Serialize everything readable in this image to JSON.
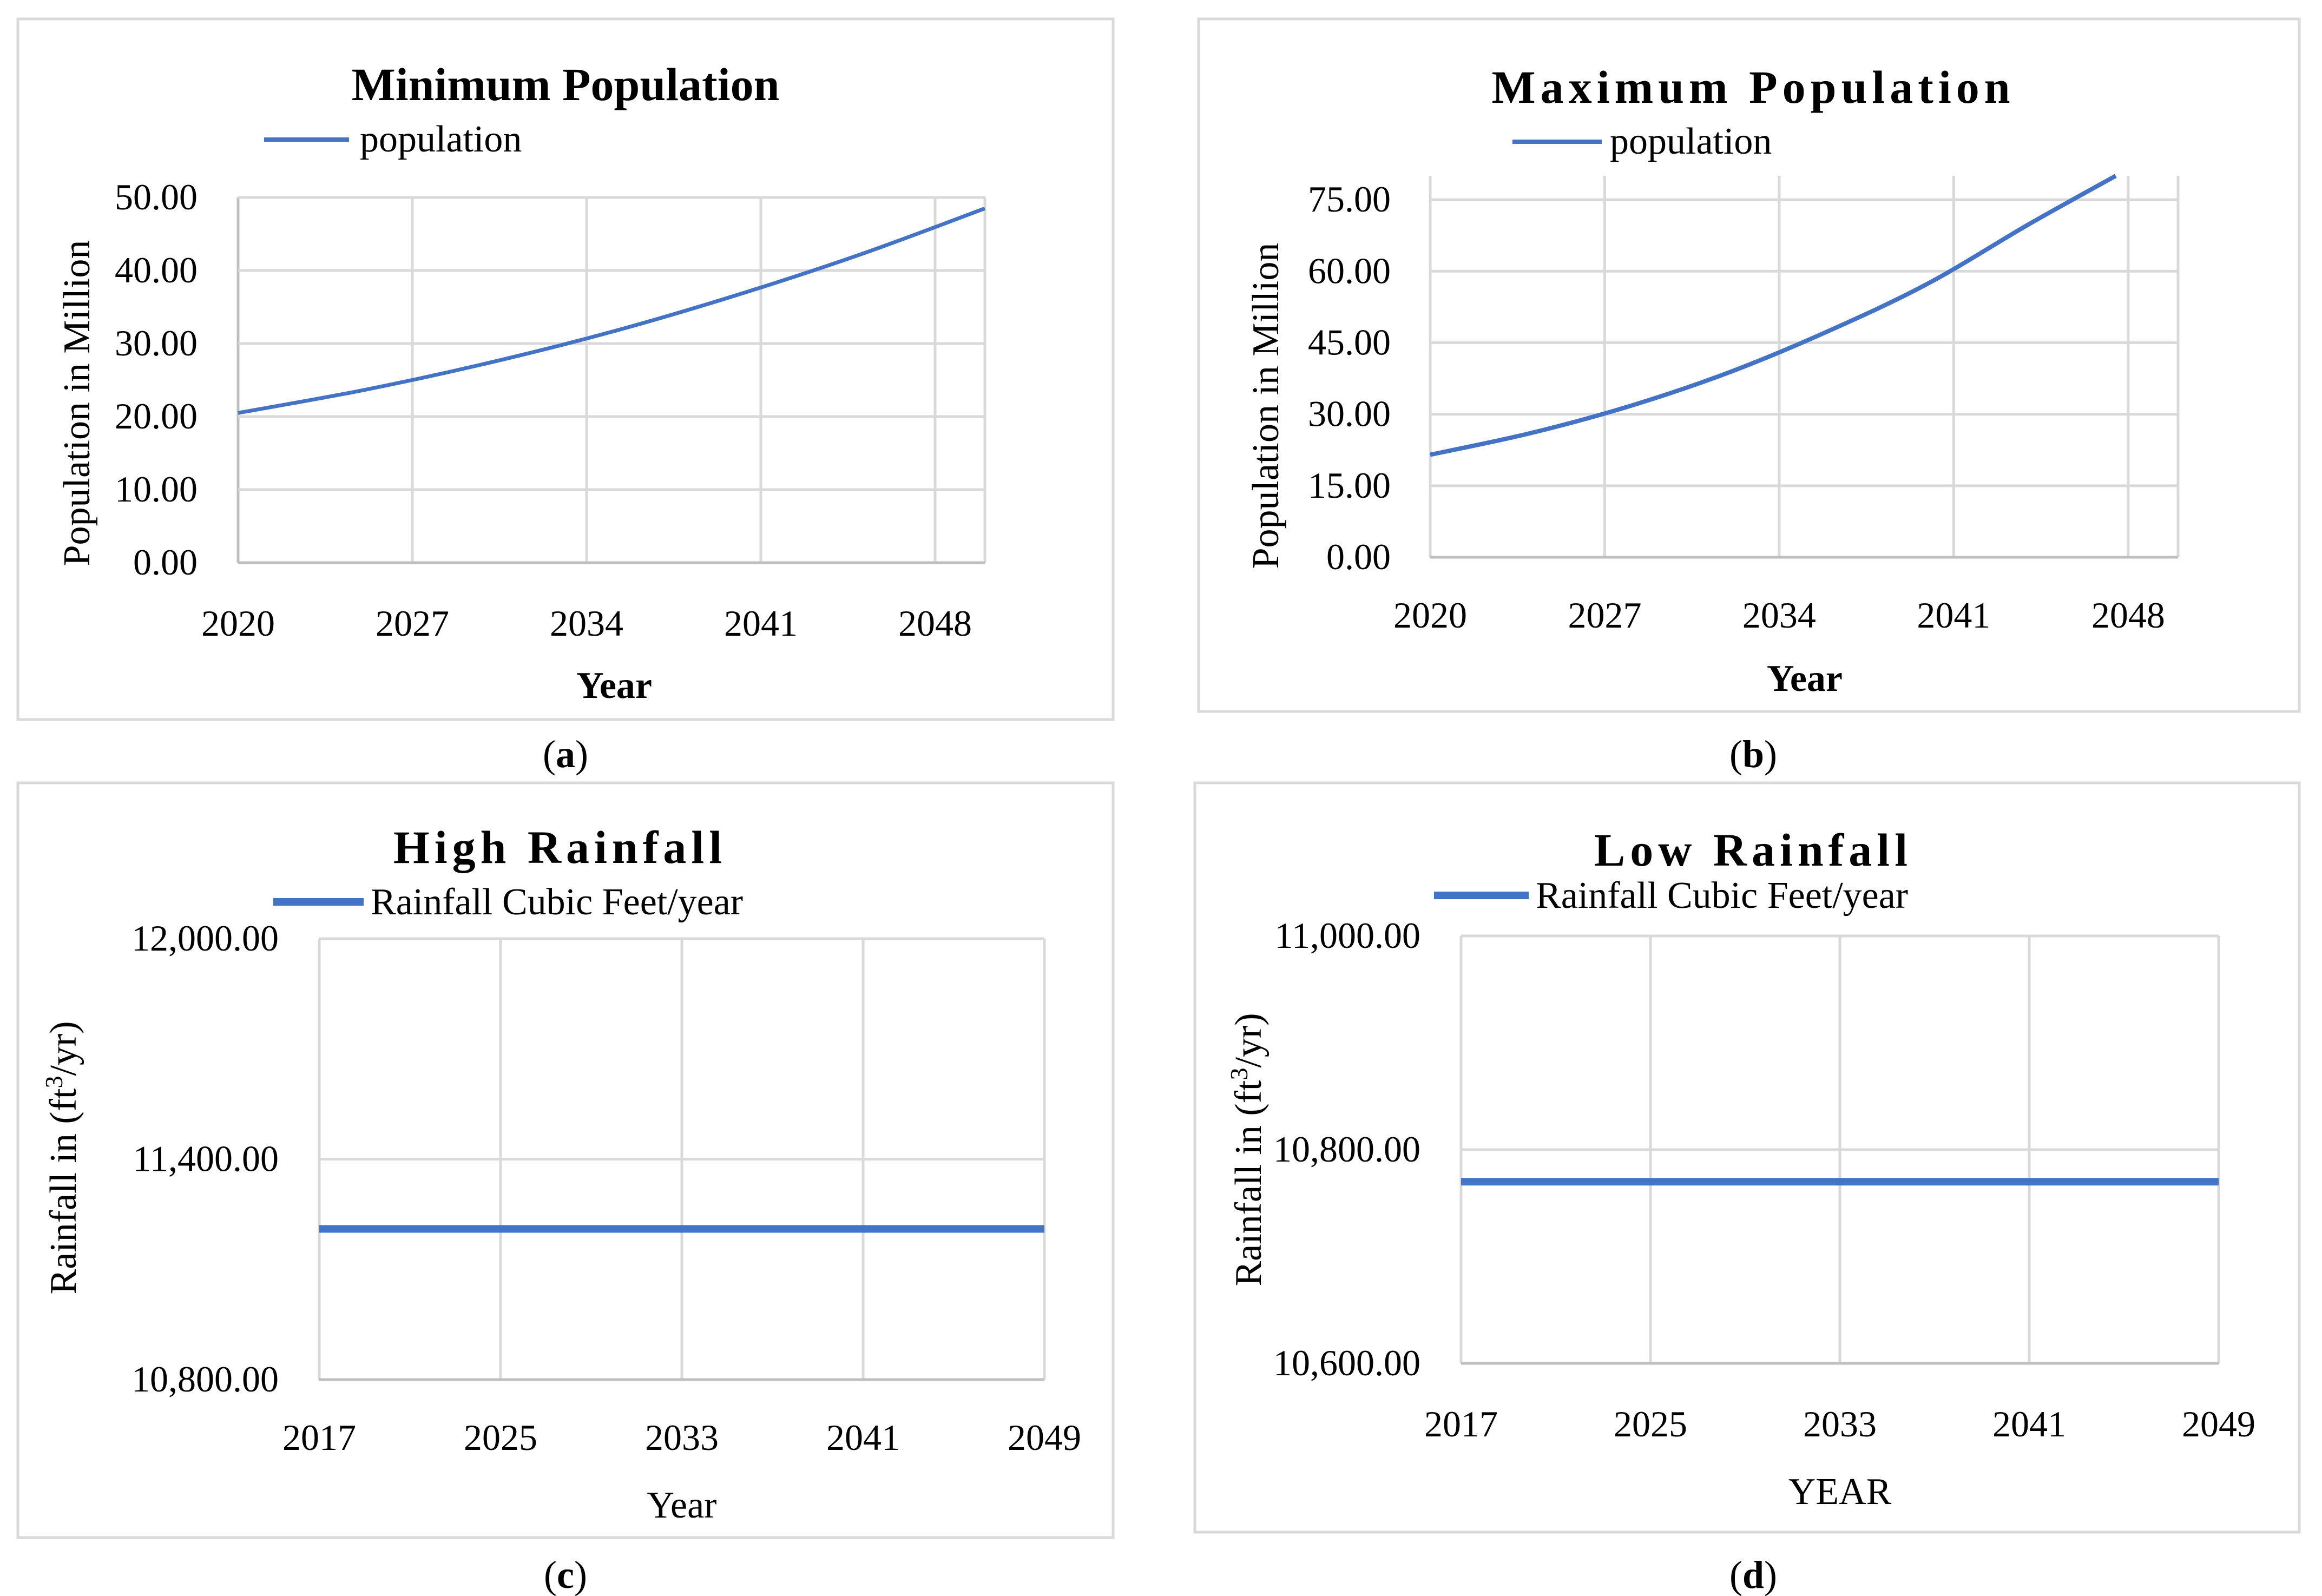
{
  "colors": {
    "series": "#4472c4",
    "grid": "#d9d9d9",
    "frame": "#d9d9d9"
  },
  "chart_data": [
    {
      "id": "a",
      "type": "line",
      "title": "Minimum Population",
      "legend": [
        "population"
      ],
      "xlabel": "Year",
      "ylabel": "Population in Million",
      "x_ticks": [
        "2020",
        "2027",
        "2034",
        "2041",
        "2048"
      ],
      "y_ticks": [
        "0.00",
        "10.00",
        "20.00",
        "30.00",
        "40.00",
        "50.00"
      ],
      "xlim": [
        2020,
        2050
      ],
      "ylim": [
        0,
        50
      ],
      "series": [
        {
          "name": "population",
          "x": [
            2020,
            2025,
            2030,
            2035,
            2040,
            2045,
            2050
          ],
          "y": [
            20.5,
            23.6,
            27.3,
            31.6,
            36.6,
            42.2,
            48.5
          ]
        }
      ],
      "panel": "a"
    },
    {
      "id": "b",
      "type": "line",
      "title": "Maximum Population",
      "legend": [
        "population"
      ],
      "xlabel": "Year",
      "ylabel": "Population in Million",
      "x_ticks": [
        "2020",
        "2027",
        "2034",
        "2041",
        "2048"
      ],
      "y_ticks": [
        "0.00",
        "15.00",
        "30.00",
        "45.00",
        "60.00",
        "75.00"
      ],
      "xlim": [
        2020,
        2050
      ],
      "ylim": [
        0,
        80
      ],
      "series": [
        {
          "name": "population",
          "x": [
            2020,
            2024,
            2028,
            2032,
            2036,
            2040,
            2044,
            2047.5
          ],
          "y": [
            21.5,
            26.0,
            31.7,
            38.8,
            47.5,
            57.5,
            69.8,
            80.0
          ]
        }
      ],
      "panel": "b"
    },
    {
      "id": "c",
      "type": "line",
      "title": "High Rainfall",
      "legend": [
        "Rainfall Cubic Feet/year"
      ],
      "xlabel": "Year",
      "ylabel": "Rainfall in (ft³/yr)",
      "x_ticks": [
        "2017",
        "2025",
        "2033",
        "2041",
        "2049"
      ],
      "y_ticks": [
        "10,800.00",
        "11,400.00",
        "12,000.00"
      ],
      "xlim": [
        2017,
        2049
      ],
      "ylim": [
        10800,
        12000
      ],
      "series": [
        {
          "name": "Rainfall Cubic Feet/year",
          "x": [
            2017,
            2049
          ],
          "y": [
            11210,
            11210
          ]
        }
      ],
      "panel": "c"
    },
    {
      "id": "d",
      "type": "line",
      "title": "Low Rainfall",
      "legend": [
        "Rainfall Cubic Feet/year"
      ],
      "xlabel": "YEAR",
      "ylabel": "Rainfall in (ft³/yr)",
      "x_ticks": [
        "2017",
        "2025",
        "2033",
        "2041",
        "2049"
      ],
      "y_ticks": [
        "10,600.00",
        "10,800.00",
        "11,000.00"
      ],
      "xlim": [
        2017,
        2049
      ],
      "ylim": [
        10600,
        11000
      ],
      "series": [
        {
          "name": "Rainfall Cubic Feet/year",
          "x": [
            2017,
            2049
          ],
          "y": [
            10770,
            10770
          ]
        }
      ],
      "panel": "d"
    }
  ]
}
